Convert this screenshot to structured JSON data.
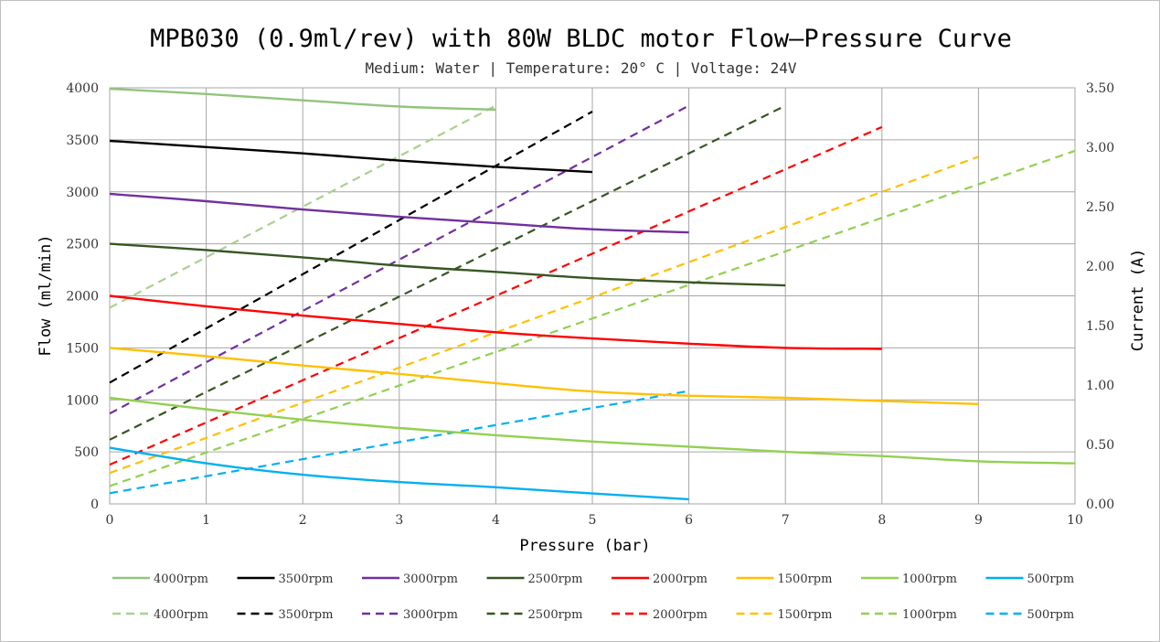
{
  "chart_data": {
    "type": "line",
    "title": "MPB030 (0.9ml/rev)  with 80W BLDC motor Flow—Pressure Curve",
    "subtitle": "Medium: Water | Temperature: 20° C | Voltage: 24V",
    "xlabel": "Pressure (bar)",
    "ylabel": "Flow (ml/min)",
    "y2label": "Current (A)",
    "xlim": [
      0,
      10
    ],
    "ylim": [
      0,
      4000
    ],
    "y2lim": [
      0,
      3.5
    ],
    "x_ticks": [
      "0",
      "1",
      "2",
      "3",
      "4",
      "5",
      "6",
      "7",
      "8",
      "9",
      "10"
    ],
    "y_ticks": [
      "0",
      "500",
      "1000",
      "1500",
      "2000",
      "2500",
      "3000",
      "3500",
      "4000"
    ],
    "y2_ticks": [
      "0.00",
      "0.50",
      "1.00",
      "1.50",
      "2.00",
      "2.50",
      "3.00",
      "3.50"
    ],
    "grid": true,
    "legend_position": "bottom",
    "flow_series": [
      {
        "name": "4000rpm",
        "color": "#92c47d",
        "x": [
          0,
          1,
          2,
          3,
          4
        ],
        "values": [
          3990,
          3940,
          3880,
          3820,
          3790
        ]
      },
      {
        "name": "3500rpm",
        "color": "#000000",
        "x": [
          0,
          1,
          2,
          3,
          4,
          5
        ],
        "values": [
          3490,
          3430,
          3370,
          3300,
          3240,
          3190
        ]
      },
      {
        "name": "3000rpm",
        "color": "#7030a0",
        "x": [
          0,
          1,
          2,
          3,
          4,
          5,
          6
        ],
        "values": [
          2980,
          2910,
          2830,
          2760,
          2700,
          2640,
          2610
        ]
      },
      {
        "name": "2500rpm",
        "color": "#375623",
        "x": [
          0,
          1,
          2,
          3,
          4,
          5,
          6,
          7
        ],
        "values": [
          2500,
          2440,
          2370,
          2290,
          2230,
          2170,
          2130,
          2100
        ]
      },
      {
        "name": "2000rpm",
        "color": "#ff0000",
        "x": [
          0,
          1,
          2,
          3,
          4,
          5,
          6,
          7,
          8
        ],
        "values": [
          2000,
          1900,
          1810,
          1730,
          1650,
          1590,
          1540,
          1500,
          1490
        ]
      },
      {
        "name": "1500rpm",
        "color": "#ffc000",
        "x": [
          0,
          1,
          2,
          3,
          4,
          5,
          6,
          7,
          8,
          9
        ],
        "values": [
          1500,
          1420,
          1330,
          1250,
          1160,
          1080,
          1040,
          1020,
          990,
          960
        ]
      },
      {
        "name": "1000rpm",
        "color": "#92d050",
        "x": [
          0,
          1,
          2,
          3,
          4,
          5,
          6,
          7,
          8,
          9,
          10
        ],
        "values": [
          1020,
          910,
          810,
          730,
          660,
          600,
          550,
          500,
          460,
          410,
          390
        ]
      },
      {
        "name": "500rpm",
        "color": "#00b0f0",
        "x": [
          0,
          1,
          2,
          3,
          4,
          5,
          6
        ],
        "values": [
          540,
          390,
          280,
          210,
          160,
          100,
          45
        ]
      }
    ],
    "current_series": [
      {
        "name": "4000rpm",
        "color": "#a9d18e",
        "x": [
          0,
          4
        ],
        "values": [
          1.65,
          3.35
        ]
      },
      {
        "name": "3500rpm",
        "color": "#000000",
        "x": [
          0,
          5
        ],
        "values": [
          1.02,
          3.3
        ]
      },
      {
        "name": "3000rpm",
        "color": "#7030a0",
        "x": [
          0,
          6
        ],
        "values": [
          0.76,
          3.35
        ]
      },
      {
        "name": "2500rpm",
        "color": "#375623",
        "x": [
          0,
          7
        ],
        "values": [
          0.54,
          3.35
        ]
      },
      {
        "name": "2000rpm",
        "color": "#ff0000",
        "x": [
          0,
          8
        ],
        "values": [
          0.33,
          3.17
        ]
      },
      {
        "name": "1500rpm",
        "color": "#ffc000",
        "x": [
          0,
          9
        ],
        "values": [
          0.26,
          2.92
        ]
      },
      {
        "name": "1000rpm",
        "color": "#92d050",
        "x": [
          0,
          10
        ],
        "values": [
          0.15,
          2.97
        ]
      },
      {
        "name": "500rpm",
        "color": "#00b0f0",
        "x": [
          0,
          6
        ],
        "values": [
          0.09,
          0.95
        ]
      }
    ]
  }
}
